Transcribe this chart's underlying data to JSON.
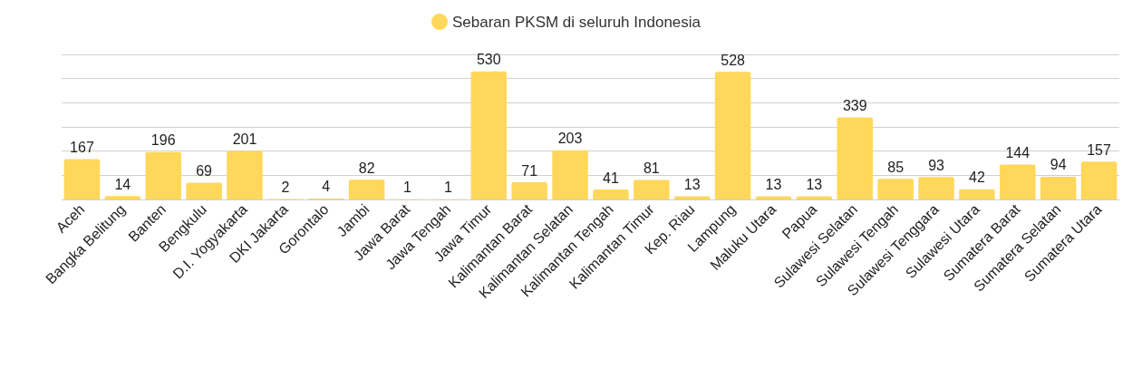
{
  "chart_data": {
    "type": "bar",
    "categories": [
      "Aceh",
      "Bangka Belitung",
      "Banten",
      "Bengkulu",
      "D.I. Yogyakarta",
      "DKI Jakarta",
      "Gorontalo",
      "Jambi",
      "Jawa Barat",
      "Jawa Tengah",
      "Jawa Timur",
      "Kalimantan Barat",
      "Kalimantan Selatan",
      "Kalimantan Tengah",
      "Kalimantan Timur",
      "Kep. Riau",
      "Lampung",
      "Maluku Utara",
      "Papua",
      "Sulawesi Selatan",
      "Sulawesi Tengah",
      "Sulawesi Tenggara",
      "Sulawesi Utara",
      "Sumatera Barat",
      "Sumatera Selatan",
      "Sumatera Utara"
    ],
    "series": [
      {
        "name": "Sebaran PKSM di seluruh Indonesia",
        "color": "#ffd75a",
        "values": [
          167,
          14,
          196,
          69,
          201,
          2,
          4,
          82,
          1,
          1,
          530,
          71,
          203,
          41,
          81,
          13,
          528,
          13,
          13,
          339,
          85,
          93,
          42,
          144,
          94,
          157
        ]
      }
    ],
    "ylim": [
      0,
      600
    ],
    "yticks": [
      0,
      100,
      200,
      300,
      400,
      500,
      600
    ],
    "tick_labels": "x",
    "grid": "y",
    "legend": "top",
    "data_labels": true
  }
}
